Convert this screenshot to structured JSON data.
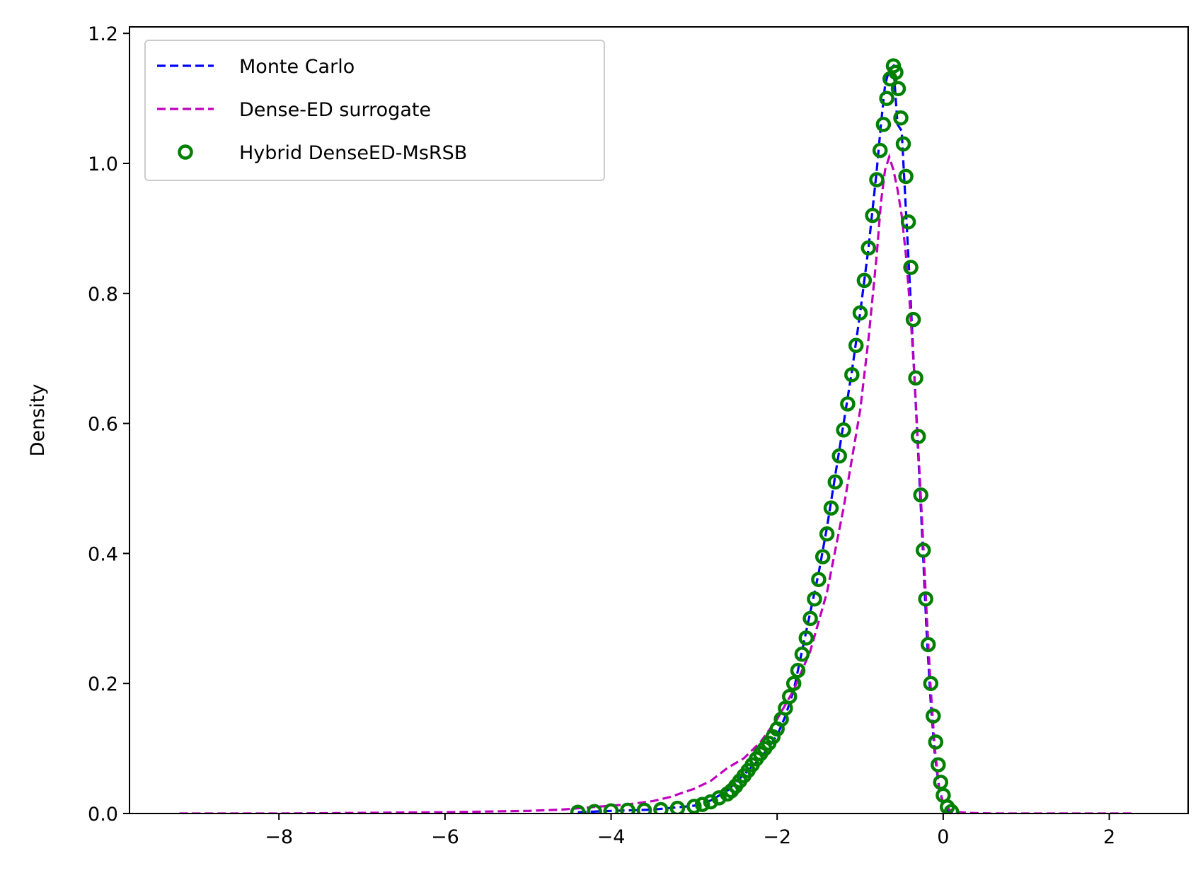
{
  "chart_data": {
    "type": "line",
    "title": "",
    "xlabel": "",
    "ylabel": "Density",
    "xlim": [
      -9.8,
      2.95
    ],
    "ylim": [
      0.0,
      1.21
    ],
    "xticks": [
      -8,
      -6,
      -4,
      -2,
      0,
      2
    ],
    "xtick_labels": [
      "−8",
      "−6",
      "−4",
      "−2",
      "0",
      "2"
    ],
    "yticks": [
      0.0,
      0.2,
      0.4,
      0.6,
      0.8,
      1.0,
      1.2
    ],
    "ytick_labels": [
      "0.0",
      "0.2",
      "0.4",
      "0.6",
      "0.8",
      "1.0",
      "1.2"
    ],
    "grid": false,
    "legend_position": "top-left",
    "series": [
      {
        "name": "Monte Carlo",
        "style": "dashed-line",
        "color": "#0000ff",
        "x": [
          -4.4,
          -4.0,
          -3.5,
          -3.0,
          -2.8,
          -2.6,
          -2.4,
          -2.2,
          -2.0,
          -1.9,
          -1.8,
          -1.7,
          -1.6,
          -1.5,
          -1.4,
          -1.3,
          -1.2,
          -1.1,
          -1.0,
          -0.9,
          -0.8,
          -0.75,
          -0.7,
          -0.65,
          -0.6,
          -0.55,
          -0.5,
          -0.45,
          -0.4,
          -0.35,
          -0.3,
          -0.25,
          -0.2,
          -0.15,
          -0.1,
          -0.05,
          0.0,
          0.05,
          0.1
        ],
        "y": [
          0.002,
          0.004,
          0.006,
          0.012,
          0.02,
          0.035,
          0.06,
          0.085,
          0.12,
          0.15,
          0.19,
          0.25,
          0.31,
          0.37,
          0.44,
          0.52,
          0.6,
          0.68,
          0.77,
          0.87,
          0.99,
          1.06,
          1.12,
          1.145,
          1.15,
          1.06,
          1.05,
          0.93,
          0.81,
          0.68,
          0.55,
          0.42,
          0.28,
          0.17,
          0.09,
          0.04,
          0.015,
          0.005,
          0.001
        ]
      },
      {
        "name": "Dense-ED surrogate",
        "style": "dashed-line",
        "color": "#bf00bf",
        "x": [
          -9.2,
          -8.5,
          -8.0,
          -7.0,
          -6.0,
          -5.5,
          -5.0,
          -4.6,
          -4.2,
          -3.8,
          -3.5,
          -3.3,
          -3.0,
          -2.8,
          -2.6,
          -2.4,
          -2.2,
          -2.0,
          -1.8,
          -1.6,
          -1.4,
          -1.2,
          -1.0,
          -0.9,
          -0.8,
          -0.75,
          -0.7,
          -0.65,
          -0.6,
          -0.55,
          -0.5,
          -0.45,
          -0.4,
          -0.35,
          -0.3,
          -0.25,
          -0.2,
          -0.15,
          -0.1,
          -0.05,
          0.0,
          0.1,
          0.3,
          0.6,
          1.0,
          1.5,
          2.0,
          2.3
        ],
        "y": [
          0.0,
          0.0,
          0.0,
          0.001,
          0.002,
          0.003,
          0.004,
          0.006,
          0.01,
          0.014,
          0.019,
          0.025,
          0.038,
          0.05,
          0.07,
          0.085,
          0.11,
          0.145,
          0.19,
          0.25,
          0.34,
          0.47,
          0.62,
          0.73,
          0.86,
          0.94,
          0.99,
          1.01,
          0.99,
          0.96,
          0.92,
          0.86,
          0.78,
          0.68,
          0.56,
          0.44,
          0.31,
          0.19,
          0.1,
          0.04,
          0.015,
          0.003,
          0.001,
          0.0,
          0.0,
          0.0,
          0.0,
          0.0
        ]
      },
      {
        "name": "Hybrid DenseED-MsRSB",
        "style": "circle-markers",
        "color": "#008000",
        "x": [
          -4.4,
          -4.2,
          -4.0,
          -3.8,
          -3.6,
          -3.4,
          -3.2,
          -3.0,
          -2.9,
          -2.8,
          -2.7,
          -2.6,
          -2.55,
          -2.5,
          -2.45,
          -2.4,
          -2.35,
          -2.3,
          -2.25,
          -2.2,
          -2.15,
          -2.1,
          -2.05,
          -2.0,
          -1.95,
          -1.9,
          -1.85,
          -1.8,
          -1.75,
          -1.7,
          -1.65,
          -1.6,
          -1.55,
          -1.5,
          -1.45,
          -1.4,
          -1.35,
          -1.3,
          -1.25,
          -1.2,
          -1.15,
          -1.1,
          -1.05,
          -1.0,
          -0.95,
          -0.9,
          -0.85,
          -0.8,
          -0.76,
          -0.72,
          -0.68,
          -0.64,
          -0.6,
          -0.57,
          -0.54,
          -0.51,
          -0.48,
          -0.45,
          -0.42,
          -0.39,
          -0.36,
          -0.33,
          -0.3,
          -0.27,
          -0.24,
          -0.21,
          -0.18,
          -0.15,
          -0.12,
          -0.09,
          -0.06,
          -0.03,
          0.0,
          0.05,
          0.1
        ],
        "y": [
          0.002,
          0.003,
          0.004,
          0.005,
          0.005,
          0.006,
          0.008,
          0.011,
          0.014,
          0.018,
          0.024,
          0.03,
          0.035,
          0.042,
          0.05,
          0.058,
          0.066,
          0.075,
          0.084,
          0.092,
          0.1,
          0.108,
          0.118,
          0.13,
          0.145,
          0.162,
          0.18,
          0.2,
          0.22,
          0.245,
          0.27,
          0.3,
          0.33,
          0.36,
          0.395,
          0.43,
          0.47,
          0.51,
          0.55,
          0.59,
          0.63,
          0.675,
          0.72,
          0.77,
          0.82,
          0.87,
          0.92,
          0.975,
          1.02,
          1.06,
          1.1,
          1.13,
          1.15,
          1.14,
          1.115,
          1.07,
          1.03,
          0.98,
          0.91,
          0.84,
          0.76,
          0.67,
          0.58,
          0.49,
          0.405,
          0.33,
          0.26,
          0.2,
          0.15,
          0.11,
          0.075,
          0.048,
          0.028,
          0.01,
          0.003
        ]
      }
    ]
  }
}
